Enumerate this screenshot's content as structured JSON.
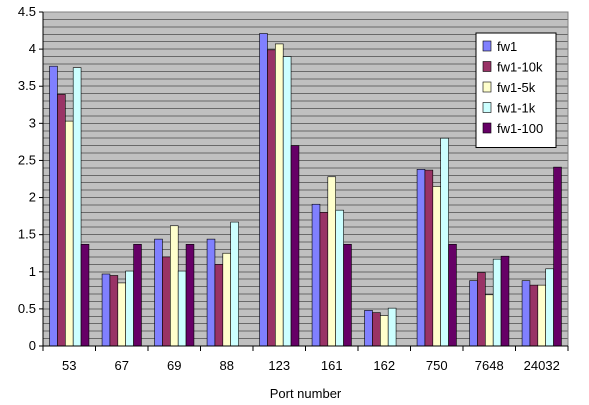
{
  "chart_data": {
    "type": "bar",
    "title": "",
    "xlabel": "Port number",
    "ylabel": "",
    "ylim": [
      0,
      4.5
    ],
    "yticks": [
      0,
      0.5,
      1,
      1.5,
      2,
      2.5,
      3,
      3.5,
      4,
      4.5
    ],
    "ytick_labels": [
      "0",
      "0.5",
      "1",
      "1.5",
      "2",
      "2.5",
      "3",
      "3.5",
      "4",
      "4.5"
    ],
    "grid": true,
    "grid_minor_step": 0.1,
    "legend_position": "top-right",
    "plot_background": "#c0c0c0",
    "categories": [
      "53",
      "67",
      "69",
      "88",
      "123",
      "161",
      "162",
      "750",
      "7648",
      "24032"
    ],
    "series": [
      {
        "name": "fw1",
        "color": "#8080ff",
        "values": [
          3.77,
          0.97,
          1.44,
          1.44,
          4.21,
          1.91,
          0.48,
          2.38,
          0.88,
          0.88
        ]
      },
      {
        "name": "fw1-10k",
        "color": "#993366",
        "values": [
          3.39,
          0.95,
          1.2,
          1.1,
          3.99,
          1.8,
          0.45,
          2.37,
          0.99,
          0.82
        ]
      },
      {
        "name": "fw1-5k",
        "color": "#ffffcc",
        "values": [
          3.03,
          0.85,
          1.62,
          1.25,
          4.07,
          2.28,
          0.41,
          2.15,
          0.69,
          0.82
        ]
      },
      {
        "name": "fw1-1k",
        "color": "#ccffff",
        "values": [
          3.75,
          1.01,
          1.01,
          1.67,
          3.9,
          1.83,
          0.51,
          2.8,
          1.17,
          1.04
        ]
      },
      {
        "name": "fw1-100",
        "color": "#660066",
        "values": [
          1.37,
          1.37,
          1.37,
          0.0,
          2.7,
          1.37,
          0.0,
          1.37,
          1.21,
          2.41
        ]
      }
    ]
  }
}
